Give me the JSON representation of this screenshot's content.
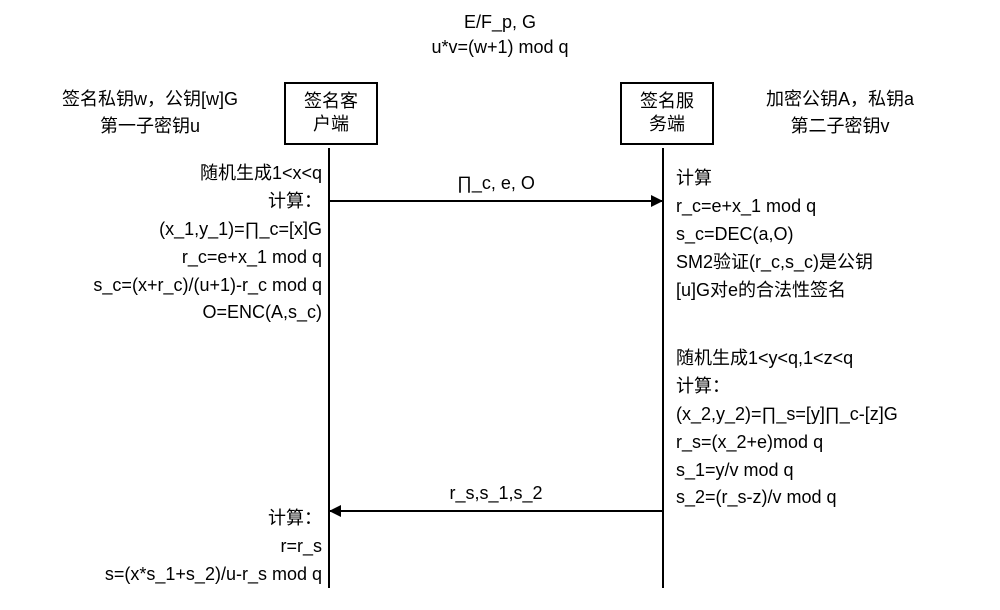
{
  "diagram": {
    "type": "sequence-diagram",
    "background_color": "#ffffff",
    "text_color": "#000000",
    "line_color": "#000000",
    "font_family": "Microsoft YaHei, SimHei, sans-serif",
    "font_size_pt": 14
  },
  "header": {
    "line1": "E/F_p, G",
    "line2": "u*v=(w+1) mod q"
  },
  "client": {
    "label_line1": "签名私钥w，公钥[w]G",
    "label_line2": "第一子密钥u",
    "box_line1": "签名客",
    "box_line2": "户端"
  },
  "server": {
    "label_line1": "加密公钥A，私钥a",
    "label_line2": "第二子密钥v",
    "box_line1": "签名服",
    "box_line2": "务端"
  },
  "client_step1": {
    "l1": "随机生成1<x<q",
    "l2": "计算：",
    "l3": "(x_1,y_1)=∏_c=[x]G",
    "l4": "r_c=e+x_1 mod q",
    "l5": "s_c=(x+r_c)/(u+1)-r_c mod q",
    "l6": "O=ENC(A,s_c)"
  },
  "server_step1": {
    "l1": "计算",
    "l2": "r_c=e+x_1 mod q",
    "l3": "s_c=DEC(a,O)",
    "l4": "SM2验证(r_c,s_c)是公钥",
    "l5": "[u]G对e的合法性签名"
  },
  "server_step2": {
    "l1": "随机生成1<y<q,1<z<q",
    "l2": "计算：",
    "l3": "(x_2,y_2)=∏_s=[y]∏_c-[z]G",
    "l4": "r_s=(x_2+e)mod q",
    "l5": "s_1=y/v mod q",
    "l6": "s_2=(r_s-z)/v mod q"
  },
  "client_step2": {
    "l1": "计算：",
    "l2": "r=r_s",
    "l3": "s=(x*s_1+s_2)/u-r_s mod q"
  },
  "messages": {
    "msg1": "∏_c, e, O",
    "msg2": "r_s,s_1,s_2"
  }
}
